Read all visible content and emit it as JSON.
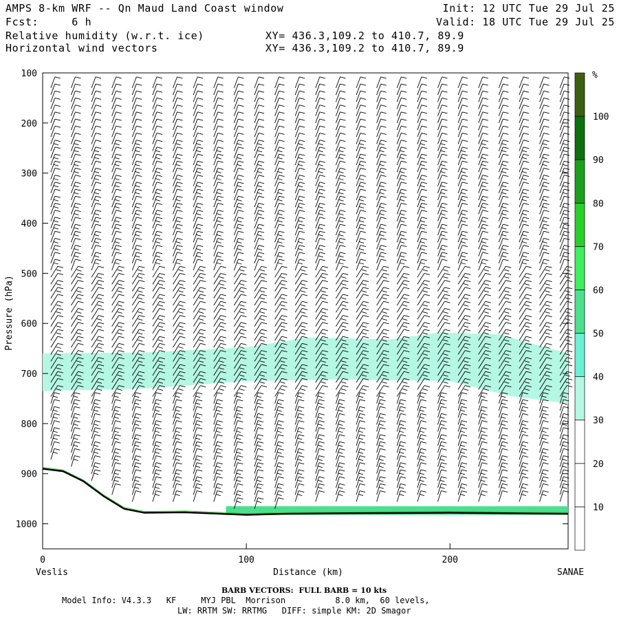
{
  "header": {
    "title": "AMPS 8-km WRF -- Qn Maud Land Coast window",
    "forecast": "Fcst:     6 h",
    "field1": "Relative humidity (w.r.t. ice)",
    "field2": "Horizontal wind vectors",
    "xy1": "XY= 436.3,109.2 to 410.7, 89.9",
    "xy2": "XY= 436.3,109.2 to 410.7, 89.9",
    "init": "Init: 12 UTC Tue 29 Jul 25",
    "valid": "Valid: 18 UTC Tue 29 Jul 25"
  },
  "footer": {
    "barb_note": "BARB VECTORS:  FULL BARB = 10 kts",
    "model_line1": "Model Info: V4.3.3   KF     MYJ PBL  Morrison          8.0 km,  60 levels,",
    "model_line2": "LW: RRTM SW: RRTMG   DIFF: simple KM: 2D Smagor"
  },
  "chart_data": {
    "type": "heatmap",
    "xlabel": "Distance (km)",
    "ylabel": "Pressure (hPa)",
    "x_left_label": "Veslis",
    "x_right_label": "SANAE",
    "xlim": [
      0,
      258
    ],
    "ylim": [
      100,
      1050
    ],
    "x_ticks": [
      0,
      100,
      200
    ],
    "y_ticks": [
      100,
      200,
      300,
      400,
      500,
      600,
      700,
      800,
      900,
      1000
    ],
    "colorbar": {
      "unit": "%",
      "levels": [
        10,
        20,
        30,
        40,
        50,
        60,
        70,
        80,
        90,
        100
      ],
      "colors": [
        "#ffffff",
        "#ffffff",
        "#ffffff",
        "#b4f7e2",
        "#6af0d2",
        "#4ce08e",
        "#3cf05a",
        "#2ad02a",
        "#1aa01a",
        "#0c700c",
        "#3c6010"
      ]
    },
    "terrain_profile": [
      {
        "x": 0,
        "p": 890
      },
      {
        "x": 10,
        "p": 895
      },
      {
        "x": 20,
        "p": 915
      },
      {
        "x": 30,
        "p": 945
      },
      {
        "x": 40,
        "p": 970
      },
      {
        "x": 50,
        "p": 978
      },
      {
        "x": 70,
        "p": 977
      },
      {
        "x": 100,
        "p": 982
      },
      {
        "x": 120,
        "p": 980
      },
      {
        "x": 150,
        "p": 979
      },
      {
        "x": 200,
        "p": 978
      },
      {
        "x": 258,
        "p": 980
      }
    ],
    "humid_band_top": [
      {
        "x": 0,
        "p": 660
      },
      {
        "x": 50,
        "p": 658
      },
      {
        "x": 100,
        "p": 648
      },
      {
        "x": 130,
        "p": 628
      },
      {
        "x": 170,
        "p": 632
      },
      {
        "x": 195,
        "p": 618
      },
      {
        "x": 225,
        "p": 622
      },
      {
        "x": 240,
        "p": 640
      },
      {
        "x": 258,
        "p": 660
      }
    ],
    "humid_band_bottom": [
      {
        "x": 0,
        "p": 735
      },
      {
        "x": 50,
        "p": 730
      },
      {
        "x": 100,
        "p": 715
      },
      {
        "x": 150,
        "p": 712
      },
      {
        "x": 200,
        "p": 715
      },
      {
        "x": 230,
        "p": 745
      },
      {
        "x": 258,
        "p": 760
      }
    ],
    "surface_moist_layer": {
      "x_from": 90,
      "x_to": 258,
      "p_top": 965
    }
  }
}
